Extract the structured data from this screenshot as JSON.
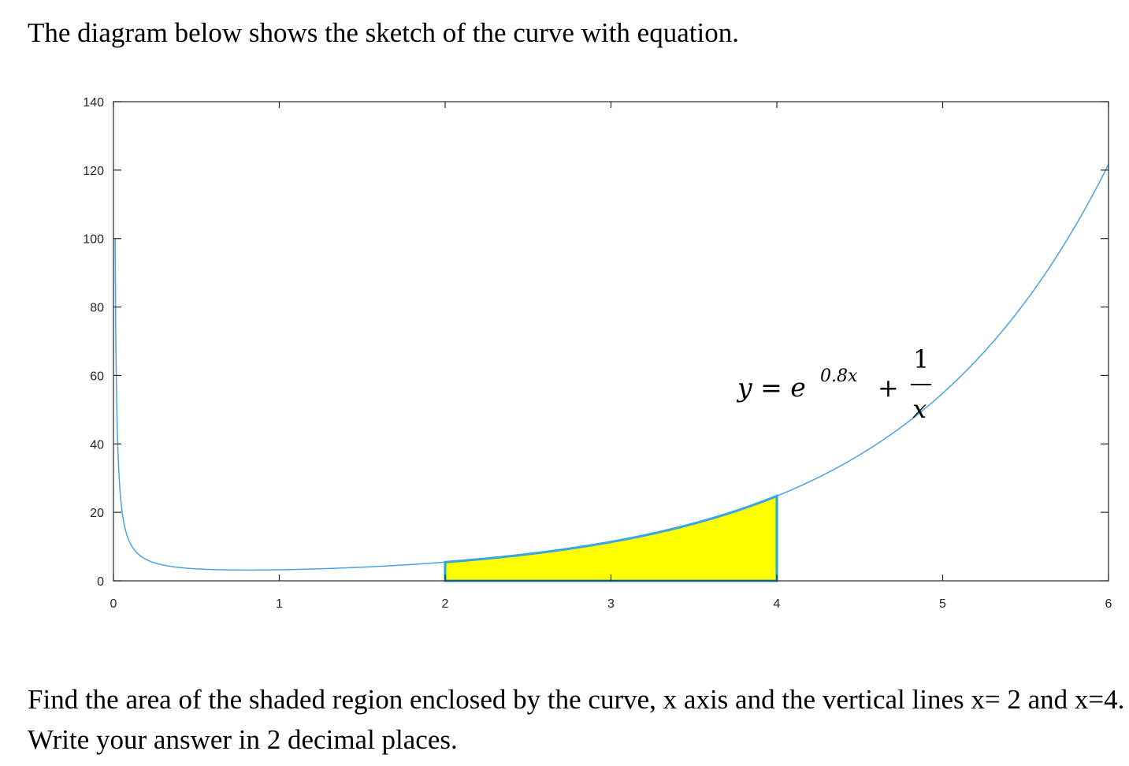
{
  "intro_text": "The diagram below shows the sketch of the curve with equation.",
  "question_text": "Find the area of the shaded region enclosed by the curve, x axis and the vertical lines x= 2 and x=4. Write your answer in 2 decimal places.",
  "chart_data": {
    "type": "line",
    "function": "e^(0.8x) + 1/x",
    "equation_label": {
      "lhs": "y = e",
      "exponent": "0.8x",
      "plus": "+",
      "numerator": "1",
      "denominator": "x"
    },
    "xlim": [
      0,
      6
    ],
    "ylim": [
      0,
      140
    ],
    "x_ticks": [
      "0",
      "1",
      "2",
      "3",
      "4",
      "5",
      "6"
    ],
    "y_ticks": [
      "0",
      "20",
      "40",
      "60",
      "80",
      "100",
      "120",
      "140"
    ],
    "shaded_region": {
      "x_from": 2,
      "x_to": 4,
      "fill": "#ffff00",
      "outline": "#1ea7e1"
    },
    "line_color": "#4aa3df",
    "grid": false
  }
}
